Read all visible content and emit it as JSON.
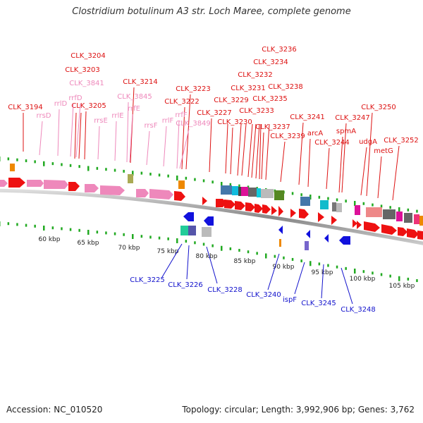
{
  "title": "Clostridium botulinum A3 str. Loch Maree, complete genome",
  "footer": {
    "accession": "Accession: NC_010520",
    "summary": "Topology: circular; Length: 3,992,906 bp; Genes: 3,762"
  },
  "colors": {
    "forward_label": "#dd1111",
    "reverse_label": "#1111cc",
    "rna_label": "#ee88bb",
    "backbone": "#888888",
    "tick": "#22aa22",
    "cds": "#ee1111",
    "cds_reverse": "#1122dd",
    "rrna": "#ee88bb"
  },
  "scale": {
    "unit": "kbp",
    "labels": [
      "60 kbp",
      "65 kbp",
      "70 kbp",
      "75 kbp",
      "80 kbp",
      "85 kbp",
      "90 kbp",
      "95 kbp",
      "100 kbp",
      "105 kbp"
    ]
  },
  "labels": {
    "forward": [
      "CLK_3194",
      "CLK_3203",
      "CLK_3204",
      "CLK_3205",
      "CLK_3214",
      "CLK_3222",
      "CLK_3223",
      "CLK_3227",
      "CLK_3229",
      "CLK_3230",
      "CLK_3231",
      "CLK_3232",
      "CLK_3233",
      "CLK_3234",
      "CLK_3235",
      "CLK_3236",
      "CLK_3237",
      "CLK_3238",
      "CLK_3239",
      "CLK_3241",
      "arcA",
      "CLK_3244",
      "CLK_3247",
      "spmA",
      "udgA",
      "CLK_3250",
      "metG",
      "CLK_3252"
    ],
    "rna": [
      "rrsD",
      "rrlD",
      "rrfD",
      "CLK_3841",
      "rrsE",
      "rrlE",
      "rrfE",
      "CLK_3845",
      "rrsF",
      "rrlF",
      "rrfF",
      "CLK_3849"
    ],
    "reverse": [
      "CLK_3225",
      "CLK_3226",
      "CLK_3228",
      "CLK_3240",
      "ispF",
      "CLK_3245",
      "CLK_3248"
    ]
  }
}
